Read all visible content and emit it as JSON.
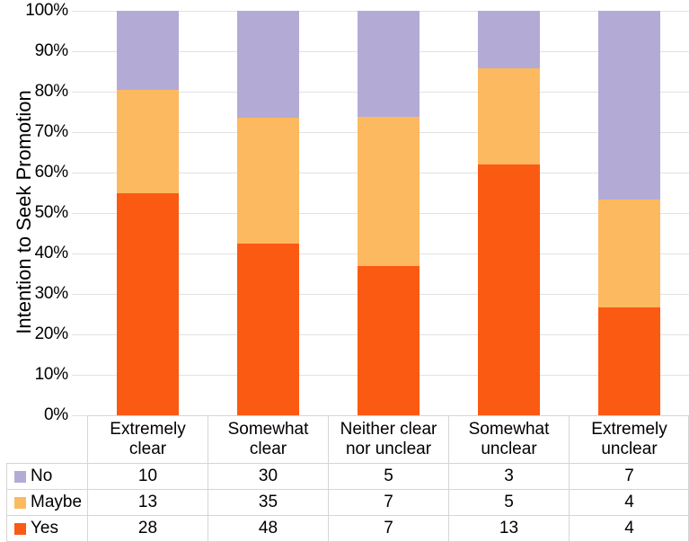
{
  "chart_data": {
    "type": "bar",
    "subtype": "stacked-100",
    "title": "",
    "ylabel": "Intention to Seek Promotion",
    "xlabel": "",
    "categories": [
      "Extremely clear",
      "Somewhat clear",
      "Neither clear nor unclear",
      "Somewhat unclear",
      "Extremely unclear"
    ],
    "series": [
      {
        "name": "No",
        "color": "#b3abd6",
        "values": [
          10,
          30,
          5,
          3,
          7
        ]
      },
      {
        "name": "Maybe",
        "color": "#fdb95f",
        "values": [
          13,
          35,
          7,
          5,
          4
        ]
      },
      {
        "name": "Yes",
        "color": "#fb5a13",
        "values": [
          28,
          48,
          7,
          13,
          4
        ]
      }
    ],
    "stack_order_bottom_to_top": [
      "Yes",
      "Maybe",
      "No"
    ],
    "yaxis": {
      "min": 0,
      "max": 100,
      "ticks": [
        "0%",
        "10%",
        "20%",
        "30%",
        "40%",
        "50%",
        "60%",
        "70%",
        "80%",
        "90%",
        "100%"
      ]
    },
    "grid": true,
    "legend_position": "data-table-left"
  },
  "colors": {
    "gridline": "#e2e2e2",
    "table_border": "#d5d5d5",
    "text": "#000000",
    "background": "#ffffff"
  }
}
